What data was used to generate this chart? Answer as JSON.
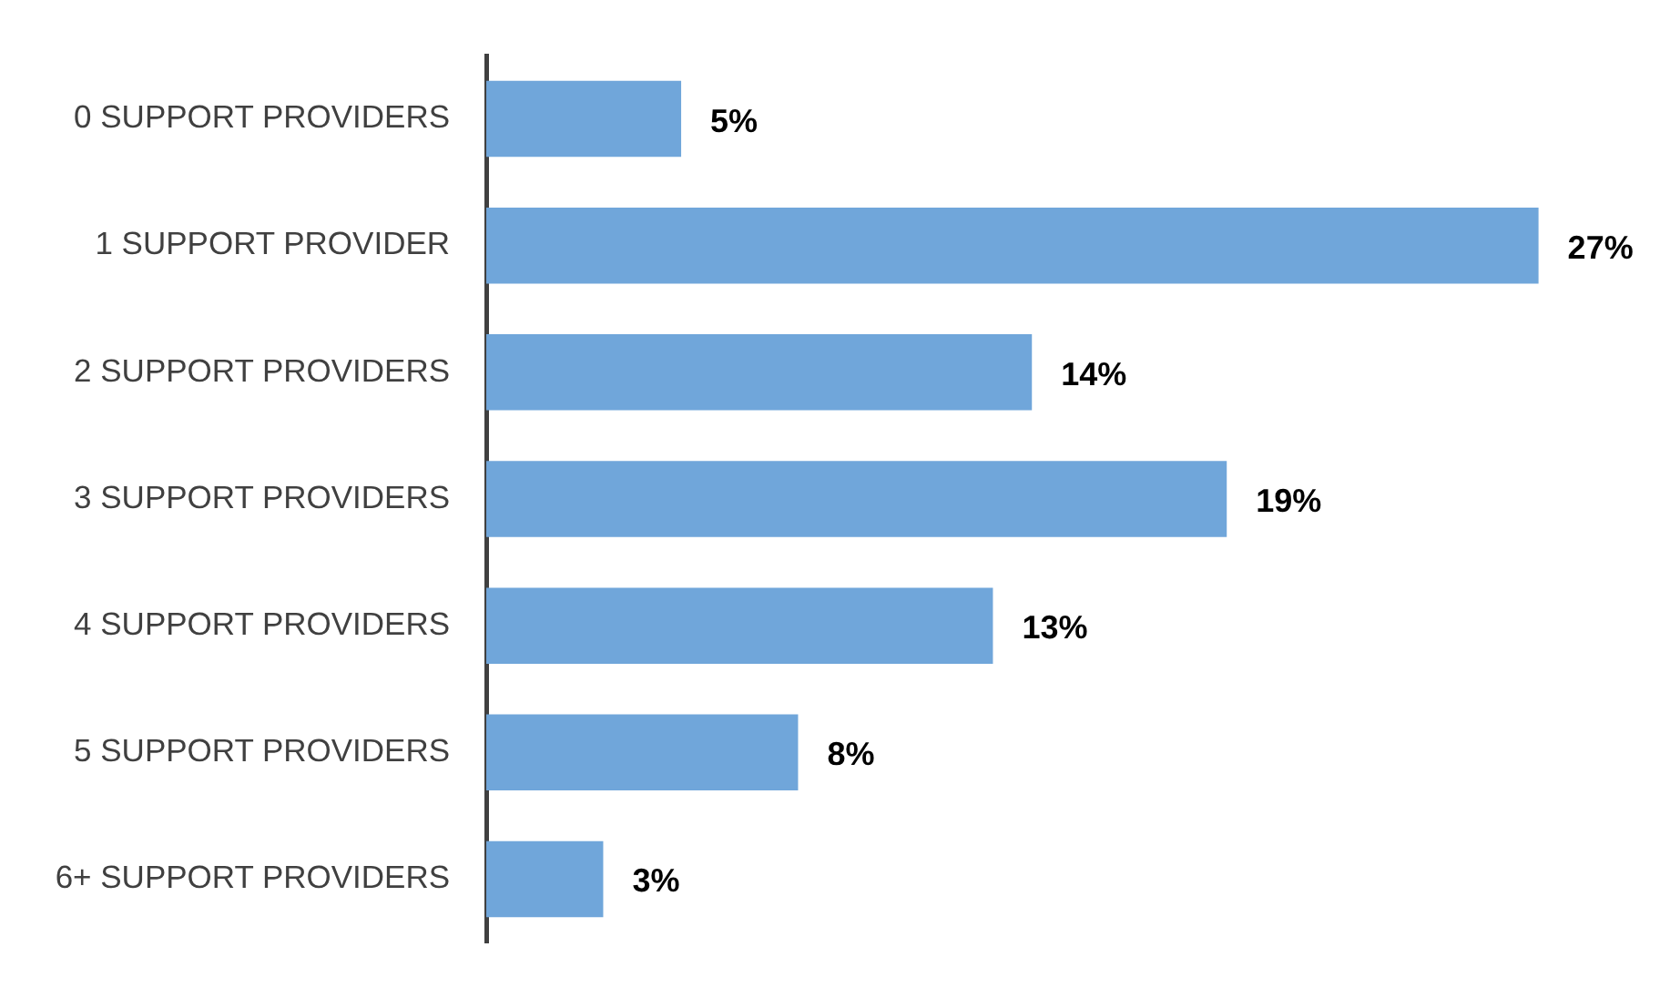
{
  "chart_data": {
    "type": "bar",
    "orientation": "horizontal",
    "categories": [
      "0 SUPPORT PROVIDERS",
      "1 SUPPORT PROVIDER",
      "2 SUPPORT PROVIDERS",
      "3 SUPPORT PROVIDERS",
      "4 SUPPORT PROVIDERS",
      "5 SUPPORT PROVIDERS",
      "6+ SUPPORT PROVIDERS"
    ],
    "values": [
      5,
      27,
      14,
      19,
      13,
      8,
      3
    ],
    "value_labels": [
      "5%",
      "27%",
      "14%",
      "19%",
      "13%",
      "8%",
      "3%"
    ],
    "color": "#70a6da",
    "legend": false,
    "tick_labels": "y"
  }
}
